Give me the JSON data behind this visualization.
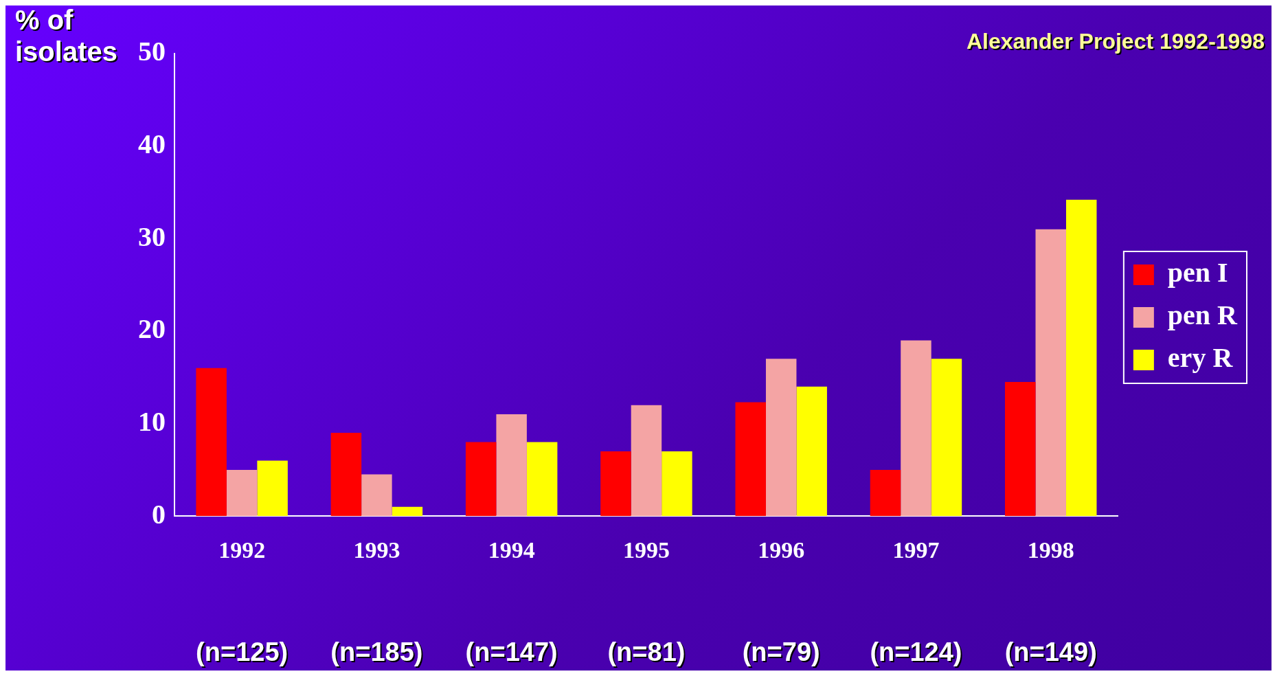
{
  "chart_data": {
    "type": "bar",
    "title": "Alexander Project 1992-1998",
    "ylabel": "% of isolates",
    "categories": [
      "1992",
      "1993",
      "1994",
      "1995",
      "1996",
      "1997",
      "1998"
    ],
    "series": [
      {
        "name": "pen I",
        "color": "#ff0000",
        "values": [
          16,
          9,
          8,
          7,
          12.3,
          5,
          14.5
        ]
      },
      {
        "name": "pen R",
        "color": "#f4a4a4",
        "values": [
          5,
          4.5,
          11,
          12,
          17,
          19,
          31
        ]
      },
      {
        "name": "ery R",
        "color": "#ffff00",
        "values": [
          6,
          1,
          8,
          7,
          14,
          17,
          34.2
        ]
      }
    ],
    "ylim": [
      0,
      50
    ],
    "yticks": [
      0,
      10,
      20,
      30,
      40,
      50
    ],
    "grid": false,
    "legend": "right",
    "annotations": [
      "(n=125)",
      "(n=185)",
      "(n=147)",
      "(n=81)",
      "(n=79)",
      "(n=124)",
      "(n=149)"
    ]
  }
}
